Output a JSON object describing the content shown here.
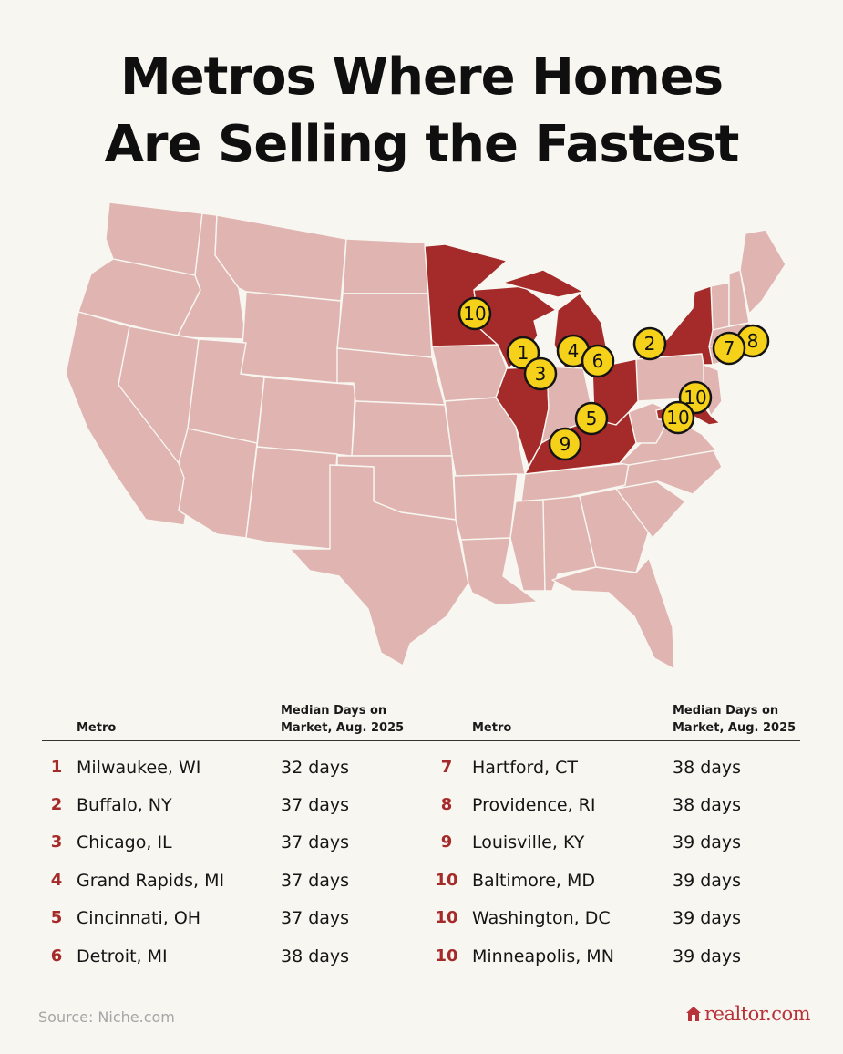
{
  "title": {
    "line1": "Metros Where Homes",
    "line2": "Are Selling the Fastest"
  },
  "map": {
    "highlight_color": "#a52a2a",
    "base_color": "#e0b4b1",
    "marker_color": "#f6d11a",
    "markers": [
      {
        "rank": "1",
        "metro": "Milwaukee, WI"
      },
      {
        "rank": "2",
        "metro": "Buffalo, NY"
      },
      {
        "rank": "3",
        "metro": "Chicago, IL"
      },
      {
        "rank": "4",
        "metro": "Grand Rapids, MI"
      },
      {
        "rank": "5",
        "metro": "Cincinnati, OH"
      },
      {
        "rank": "6",
        "metro": "Detroit, MI"
      },
      {
        "rank": "7",
        "metro": "Hartford, CT"
      },
      {
        "rank": "8",
        "metro": "Providence, RI"
      },
      {
        "rank": "9",
        "metro": "Louisville, KY"
      },
      {
        "rank": "10",
        "metro": "Baltimore, MD"
      },
      {
        "rank": "10",
        "metro": "Washington, DC"
      },
      {
        "rank": "10",
        "metro": "Minneapolis, MN"
      }
    ]
  },
  "table": {
    "headers": {
      "metro": "Metro",
      "days_line1": "Median Days on",
      "days_line2": "Market, Aug. 2025"
    },
    "left_rows": [
      {
        "rank": "1",
        "metro": "Milwaukee, WI",
        "days": "32 days"
      },
      {
        "rank": "2",
        "metro": "Buffalo, NY",
        "days": "37 days"
      },
      {
        "rank": "3",
        "metro": "Chicago, IL",
        "days": "37 days"
      },
      {
        "rank": "4",
        "metro": "Grand Rapids, MI",
        "days": "37 days"
      },
      {
        "rank": "5",
        "metro": "Cincinnati, OH",
        "days": "37 days"
      },
      {
        "rank": "6",
        "metro": "Detroit, MI",
        "days": "38 days"
      }
    ],
    "right_rows": [
      {
        "rank": "7",
        "metro": "Hartford, CT",
        "days": "38 days"
      },
      {
        "rank": "8",
        "metro": "Providence, RI",
        "days": "38 days"
      },
      {
        "rank": "9",
        "metro": "Louisville, KY",
        "days": "39 days"
      },
      {
        "rank": "10",
        "metro": "Baltimore, MD",
        "days": "39 days"
      },
      {
        "rank": "10",
        "metro": "Washington, DC",
        "days": "39 days"
      },
      {
        "rank": "10",
        "metro": "Minneapolis, MN",
        "days": "39 days"
      }
    ]
  },
  "footer": {
    "source": "Source: Niche.com",
    "brand": "realtor.com"
  }
}
